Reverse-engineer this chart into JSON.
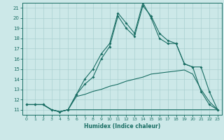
{
  "xlabel": "Humidex (Indice chaleur)",
  "bg_color": "#cce8e8",
  "line_color": "#1a6e64",
  "grid_color": "#aad0d0",
  "xlim": [
    -0.5,
    23.5
  ],
  "ylim": [
    10.5,
    21.5
  ],
  "xticks": [
    0,
    1,
    2,
    3,
    4,
    5,
    6,
    7,
    8,
    9,
    10,
    11,
    12,
    13,
    14,
    15,
    16,
    17,
    18,
    19,
    20,
    21,
    22,
    23
  ],
  "yticks": [
    11,
    12,
    13,
    14,
    15,
    16,
    17,
    18,
    19,
    20,
    21
  ],
  "series1_x": [
    0,
    1,
    2,
    3,
    4,
    5,
    6,
    7,
    8,
    9,
    10,
    11,
    12,
    13,
    14,
    15,
    16,
    17,
    18,
    19,
    20,
    21,
    22,
    23
  ],
  "series1_y": [
    11.5,
    11.5,
    11.5,
    11.0,
    10.8,
    11.0,
    11.0,
    11.0,
    11.0,
    11.0,
    11.0,
    11.0,
    11.0,
    11.0,
    11.0,
    11.0,
    11.0,
    11.0,
    11.0,
    11.0,
    11.0,
    11.0,
    11.0,
    11.0
  ],
  "series2_x": [
    0,
    1,
    2,
    3,
    4,
    5,
    6,
    7,
    8,
    9,
    10,
    11,
    12,
    13,
    14,
    15,
    16,
    17,
    18,
    19,
    20,
    21,
    22,
    23
  ],
  "series2_y": [
    11.5,
    11.5,
    11.5,
    11.0,
    10.8,
    11.0,
    12.3,
    12.5,
    12.8,
    13.0,
    13.3,
    13.5,
    13.8,
    14.0,
    14.2,
    14.5,
    14.6,
    14.7,
    14.8,
    14.9,
    14.5,
    13.0,
    11.8,
    11.0
  ],
  "series3_x": [
    0,
    1,
    2,
    3,
    4,
    5,
    6,
    7,
    8,
    9,
    10,
    11,
    12,
    13,
    14,
    15,
    16,
    17,
    18,
    19,
    20,
    21,
    22,
    23
  ],
  "series3_y": [
    11.5,
    11.5,
    11.5,
    11.0,
    10.8,
    11.0,
    12.5,
    13.5,
    14.2,
    16.0,
    17.2,
    20.2,
    19.0,
    18.2,
    21.2,
    20.2,
    18.5,
    17.8,
    17.5,
    15.5,
    15.2,
    15.2,
    12.8,
    11.0
  ],
  "series4_x": [
    0,
    1,
    2,
    3,
    4,
    5,
    6,
    7,
    8,
    9,
    10,
    11,
    12,
    13,
    14,
    15,
    16,
    17,
    18,
    19,
    20,
    21,
    22,
    23
  ],
  "series4_y": [
    11.5,
    11.5,
    11.5,
    11.0,
    10.8,
    11.0,
    12.5,
    14.0,
    15.0,
    16.5,
    17.5,
    20.5,
    19.5,
    18.5,
    21.5,
    20.0,
    18.0,
    17.5,
    17.5,
    15.5,
    15.2,
    12.8,
    11.5,
    11.0
  ]
}
